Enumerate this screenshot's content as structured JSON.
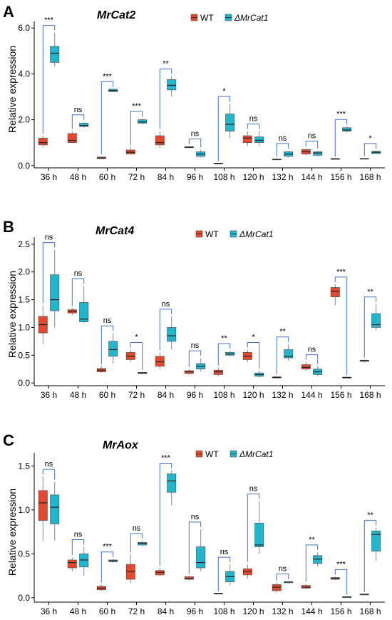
{
  "colors": {
    "wt": "#e8472b",
    "mutant": "#1fb6cf",
    "bracket": "#4472c4",
    "whisker": "#888888"
  },
  "chart_data": [
    {
      "type": "box",
      "panel": "A",
      "title": "MrCat2",
      "ylabel": "Relative expression",
      "ylim": [
        -0.1,
        6.1
      ],
      "yticks": [
        "0.0",
        "2.0",
        "4.0",
        "6.0"
      ],
      "ytick_values": [
        0,
        2,
        4,
        6
      ],
      "categories": [
        "36 h",
        "48 h",
        "60 h",
        "72 h",
        "84 h",
        "96 h",
        "108 h",
        "120 h",
        "132 h",
        "144 h",
        "156 h",
        "168 h"
      ],
      "legend": [
        "WT",
        "ΔMrCat1"
      ],
      "series": [
        {
          "name": "WT",
          "boxes": [
            {
              "min": 0.8,
              "q1": 0.9,
              "med": 1.0,
              "q3": 1.2,
              "max": 1.3
            },
            {
              "min": 1.0,
              "q1": 1.0,
              "med": 1.1,
              "q3": 1.4,
              "max": 1.5
            },
            {
              "min": 0.3,
              "q1": 0.3,
              "med": 0.33,
              "q3": 0.37,
              "max": 0.4
            },
            {
              "min": 0.5,
              "q1": 0.5,
              "med": 0.58,
              "q3": 0.68,
              "max": 0.8
            },
            {
              "min": 0.75,
              "q1": 0.9,
              "med": 1.0,
              "q3": 1.3,
              "max": 1.5
            },
            {
              "min": 0.75,
              "q1": 0.78,
              "med": 0.8,
              "q3": 0.82,
              "max": 0.85
            },
            {
              "min": 0.1,
              "q1": 0.1,
              "med": 0.1,
              "q3": 0.1,
              "max": 0.1
            },
            {
              "min": 0.85,
              "q1": 1.0,
              "med": 1.2,
              "q3": 1.3,
              "max": 1.5
            },
            {
              "min": 0.25,
              "q1": 0.25,
              "med": 0.27,
              "q3": 0.28,
              "max": 0.3
            },
            {
              "min": 0.45,
              "q1": 0.5,
              "med": 0.6,
              "q3": 0.7,
              "max": 0.75
            },
            {
              "min": 0.3,
              "q1": 0.3,
              "med": 0.3,
              "q3": 0.3,
              "max": 0.3
            },
            {
              "min": 0.28,
              "q1": 0.28,
              "med": 0.3,
              "q3": 0.31,
              "max": 0.32
            }
          ]
        },
        {
          "name": "ΔMrCat1",
          "boxes": [
            {
              "min": 4.3,
              "q1": 4.5,
              "med": 4.9,
              "q3": 5.2,
              "max": 5.8
            },
            {
              "min": 1.65,
              "q1": 1.7,
              "med": 1.75,
              "q3": 1.85,
              "max": 1.9
            },
            {
              "min": 3.2,
              "q1": 3.22,
              "med": 3.28,
              "q3": 3.33,
              "max": 3.35
            },
            {
              "min": 1.8,
              "q1": 1.85,
              "med": 1.9,
              "q3": 2.0,
              "max": 2.05
            },
            {
              "min": 3.0,
              "q1": 3.3,
              "med": 3.5,
              "q3": 3.75,
              "max": 3.9
            },
            {
              "min": 0.35,
              "q1": 0.4,
              "med": 0.5,
              "q3": 0.6,
              "max": 0.7
            },
            {
              "min": 1.2,
              "q1": 1.5,
              "med": 1.8,
              "q3": 2.25,
              "max": 2.7
            },
            {
              "min": 0.85,
              "q1": 1.0,
              "med": 1.1,
              "q3": 1.25,
              "max": 1.5
            },
            {
              "min": 0.35,
              "q1": 0.4,
              "med": 0.5,
              "q3": 0.6,
              "max": 0.65
            },
            {
              "min": 0.4,
              "q1": 0.45,
              "med": 0.55,
              "q3": 0.6,
              "max": 0.65
            },
            {
              "min": 1.45,
              "q1": 1.5,
              "med": 1.55,
              "q3": 1.65,
              "max": 1.7
            },
            {
              "min": 0.5,
              "q1": 0.52,
              "med": 0.58,
              "q3": 0.62,
              "max": 0.65
            }
          ]
        }
      ],
      "significance": [
        "***",
        "ns",
        "***",
        "***",
        "**",
        "ns",
        "*",
        "ns",
        "ns",
        "ns",
        "***",
        "*"
      ]
    },
    {
      "type": "box",
      "panel": "B",
      "title": "MrCat4",
      "ylabel": "Relative expression",
      "ylim": [
        -0.05,
        2.55
      ],
      "yticks": [
        "0.0",
        "0.5",
        "1.0",
        "1.5",
        "2.0",
        "2.5"
      ],
      "ytick_values": [
        0,
        0.5,
        1.0,
        1.5,
        2.0,
        2.5
      ],
      "categories": [
        "36 h",
        "48 h",
        "60 h",
        "72 h",
        "84 h",
        "96 h",
        "108 h",
        "120 h",
        "132 h",
        "144 h",
        "156 h",
        "168 h"
      ],
      "legend": [
        "WT",
        "ΔMrCat1"
      ],
      "series": [
        {
          "name": "WT",
          "boxes": [
            {
              "min": 0.7,
              "q1": 0.9,
              "med": 1.05,
              "q3": 1.2,
              "max": 1.4
            },
            {
              "min": 1.22,
              "q1": 1.26,
              "med": 1.29,
              "q3": 1.32,
              "max": 1.35
            },
            {
              "min": 0.18,
              "q1": 0.2,
              "med": 0.23,
              "q3": 0.26,
              "max": 0.3
            },
            {
              "min": 0.38,
              "q1": 0.42,
              "med": 0.48,
              "q3": 0.55,
              "max": 0.6
            },
            {
              "min": 0.25,
              "q1": 0.3,
              "med": 0.38,
              "q3": 0.48,
              "max": 0.55
            },
            {
              "min": 0.15,
              "q1": 0.17,
              "med": 0.2,
              "q3": 0.22,
              "max": 0.25
            },
            {
              "min": 0.12,
              "q1": 0.15,
              "med": 0.2,
              "q3": 0.23,
              "max": 0.28
            },
            {
              "min": 0.38,
              "q1": 0.42,
              "med": 0.48,
              "q3": 0.55,
              "max": 0.6
            },
            {
              "min": 0.08,
              "q1": 0.09,
              "med": 0.1,
              "q3": 0.11,
              "max": 0.12
            },
            {
              "min": 0.22,
              "q1": 0.25,
              "med": 0.28,
              "q3": 0.33,
              "max": 0.38
            },
            {
              "min": 1.4,
              "q1": 1.55,
              "med": 1.65,
              "q3": 1.72,
              "max": 1.78
            },
            {
              "min": 0.37,
              "q1": 0.39,
              "med": 0.4,
              "q3": 0.41,
              "max": 0.42
            }
          ]
        },
        {
          "name": "ΔMrCat1",
          "boxes": [
            {
              "min": 1.0,
              "q1": 1.3,
              "med": 1.5,
              "q3": 1.95,
              "max": 2.4
            },
            {
              "min": 1.08,
              "q1": 1.1,
              "med": 1.15,
              "q3": 1.45,
              "max": 1.75
            },
            {
              "min": 0.35,
              "q1": 0.48,
              "med": 0.6,
              "q3": 0.75,
              "max": 0.9
            },
            {
              "min": 0.16,
              "q1": 0.17,
              "med": 0.18,
              "q3": 0.19,
              "max": 0.2
            },
            {
              "min": 0.6,
              "q1": 0.75,
              "med": 0.85,
              "q3": 1.0,
              "max": 1.2
            },
            {
              "min": 0.2,
              "q1": 0.25,
              "med": 0.3,
              "q3": 0.35,
              "max": 0.45
            },
            {
              "min": 0.48,
              "q1": 0.5,
              "med": 0.52,
              "q3": 0.55,
              "max": 0.58
            },
            {
              "min": 0.1,
              "q1": 0.12,
              "med": 0.15,
              "q3": 0.18,
              "max": 0.22
            },
            {
              "min": 0.4,
              "q1": 0.45,
              "med": 0.48,
              "q3": 0.6,
              "max": 0.7
            },
            {
              "min": 0.12,
              "q1": 0.15,
              "med": 0.2,
              "q3": 0.25,
              "max": 0.3
            },
            {
              "min": 0.1,
              "q1": 0.1,
              "med": 0.1,
              "q3": 0.1,
              "max": 0.1
            },
            {
              "min": 0.95,
              "q1": 1.0,
              "med": 1.05,
              "q3": 1.25,
              "max": 1.42
            }
          ]
        }
      ],
      "significance": [
        "ns",
        "ns",
        "ns",
        "*",
        "ns",
        "ns",
        "**",
        "*",
        "**",
        "ns",
        "***",
        "**"
      ]
    },
    {
      "type": "box",
      "panel": "C",
      "title": "MrAox",
      "ylabel": "Relative expression",
      "ylim": [
        -0.05,
        1.6
      ],
      "yticks": [
        "0.0",
        "0.5",
        "1.0",
        "1.5"
      ],
      "ytick_values": [
        0,
        0.5,
        1.0,
        1.5
      ],
      "categories": [
        "36 h",
        "48 h",
        "60 h",
        "72 h",
        "84 h",
        "96 h",
        "108 h",
        "120 h",
        "132 h",
        "144 h",
        "156 h",
        "168 h"
      ],
      "legend": [
        "WT",
        "ΔMrCat1"
      ],
      "series": [
        {
          "name": "WT",
          "boxes": [
            {
              "min": 0.65,
              "q1": 0.88,
              "med": 1.08,
              "q3": 1.22,
              "max": 1.38
            },
            {
              "min": 0.3,
              "q1": 0.34,
              "med": 0.4,
              "q3": 0.43,
              "max": 0.46
            },
            {
              "min": 0.08,
              "q1": 0.09,
              "med": 0.11,
              "q3": 0.13,
              "max": 0.15
            },
            {
              "min": 0.17,
              "q1": 0.21,
              "med": 0.3,
              "q3": 0.38,
              "max": 0.5
            },
            {
              "min": 0.25,
              "q1": 0.26,
              "med": 0.29,
              "q3": 0.31,
              "max": 0.34
            },
            {
              "min": 0.2,
              "q1": 0.21,
              "med": 0.22,
              "q3": 0.24,
              "max": 0.25
            },
            {
              "min": 0.05,
              "q1": 0.05,
              "med": 0.05,
              "q3": 0.05,
              "max": 0.05
            },
            {
              "min": 0.22,
              "q1": 0.26,
              "med": 0.3,
              "q3": 0.33,
              "max": 0.38
            },
            {
              "min": 0.06,
              "q1": 0.08,
              "med": 0.12,
              "q3": 0.15,
              "max": 0.17
            },
            {
              "min": 0.1,
              "q1": 0.11,
              "med": 0.12,
              "q3": 0.14,
              "max": 0.16
            },
            {
              "min": 0.2,
              "q1": 0.21,
              "med": 0.22,
              "q3": 0.23,
              "max": 0.24
            },
            {
              "min": 0.04,
              "q1": 0.04,
              "med": 0.04,
              "q3": 0.04,
              "max": 0.04
            }
          ]
        },
        {
          "name": "ΔMrCat1",
          "boxes": [
            {
              "min": 0.65,
              "q1": 0.84,
              "med": 1.03,
              "q3": 1.17,
              "max": 1.32
            },
            {
              "min": 0.25,
              "q1": 0.35,
              "med": 0.43,
              "q3": 0.5,
              "max": 0.58
            },
            {
              "min": 0.4,
              "q1": 0.41,
              "med": 0.42,
              "q3": 0.43,
              "max": 0.44
            },
            {
              "min": 0.59,
              "q1": 0.6,
              "med": 0.62,
              "q3": 0.63,
              "max": 0.65
            },
            {
              "min": 1.05,
              "q1": 1.2,
              "med": 1.33,
              "q3": 1.41,
              "max": 1.45
            },
            {
              "min": 0.3,
              "q1": 0.34,
              "med": 0.4,
              "q3": 0.58,
              "max": 0.78
            },
            {
              "min": 0.14,
              "q1": 0.18,
              "med": 0.24,
              "q3": 0.3,
              "max": 0.38
            },
            {
              "min": 0.5,
              "q1": 0.58,
              "med": 0.6,
              "q3": 0.85,
              "max": 1.1
            },
            {
              "min": 0.16,
              "q1": 0.17,
              "med": 0.18,
              "q3": 0.18,
              "max": 0.19
            },
            {
              "min": 0.35,
              "q1": 0.39,
              "med": 0.44,
              "q3": 0.48,
              "max": 0.52
            },
            {
              "min": 0.01,
              "q1": 0.01,
              "med": 0.01,
              "q3": 0.01,
              "max": 0.01
            },
            {
              "min": 0.42,
              "q1": 0.53,
              "med": 0.72,
              "q3": 0.76,
              "max": 0.8
            }
          ]
        }
      ],
      "significance": [
        "ns",
        "ns",
        "***",
        "ns",
        "***",
        "ns",
        "ns",
        "ns",
        "ns",
        "**",
        "***",
        "**"
      ]
    }
  ]
}
